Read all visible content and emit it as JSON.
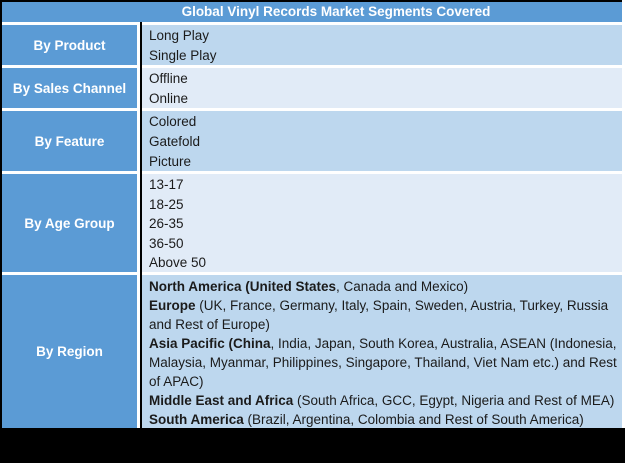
{
  "table": {
    "title": "Global Vinyl Records Market Segments Covered",
    "colors": {
      "header_bg": "#5B9BD5",
      "label_bg": "#5B9BD5",
      "band_dark": "#BDD7EE",
      "band_light": "#E1EBF7",
      "header_text": "#FFFFFF",
      "body_text": "#1B1B1B",
      "outer_border": "#000000",
      "inner_border": "#FFFFFF",
      "bottom_band": "#000000"
    },
    "rows": [
      {
        "label": "By Product",
        "lines": [
          "Long Play",
          "Single Play"
        ]
      },
      {
        "label": "By Sales Channel",
        "lines": [
          "Offline",
          "Online"
        ]
      },
      {
        "label": "By Feature",
        "lines": [
          "Colored",
          "Gatefold",
          "Picture"
        ]
      },
      {
        "label": "By Age Group",
        "lines": [
          "13-17",
          "18-25",
          "26-35",
          "36-50",
          "Above 50"
        ]
      },
      {
        "label": "By Region",
        "lines_rich": [
          [
            {
              "t": "North America (United States",
              "b": true
            },
            {
              "t": ", Canada and Mexico)",
              "b": false
            }
          ],
          [
            {
              "t": "Europe",
              "b": true
            },
            {
              "t": " (UK, France, Germany, Italy, Spain, Sweden, Austria, Turkey, Russia",
              "b": false
            }
          ],
          [
            {
              "t": "and Rest of Europe)",
              "b": false
            }
          ],
          [
            {
              "t": "Asia Pacific (China",
              "b": true
            },
            {
              "t": ", India, Japan, South Korea, Australia, ASEAN (Indonesia,",
              "b": false
            }
          ],
          [
            {
              "t": "Malaysia, Myanmar, Philippines, Singapore, Thailand, Viet Nam etc.) and Rest",
              "b": false
            }
          ],
          [
            {
              "t": "of APAC)",
              "b": false
            }
          ],
          [
            {
              "t": "Middle East and Africa",
              "b": true
            },
            {
              "t": " (South Africa, GCC, Egypt, Nigeria and Rest of MEA)",
              "b": false
            }
          ],
          [
            {
              "t": "South America",
              "b": true
            },
            {
              "t": " (Brazil, Argentina, Colombia and Rest of South America)",
              "b": false
            }
          ]
        ]
      }
    ]
  }
}
